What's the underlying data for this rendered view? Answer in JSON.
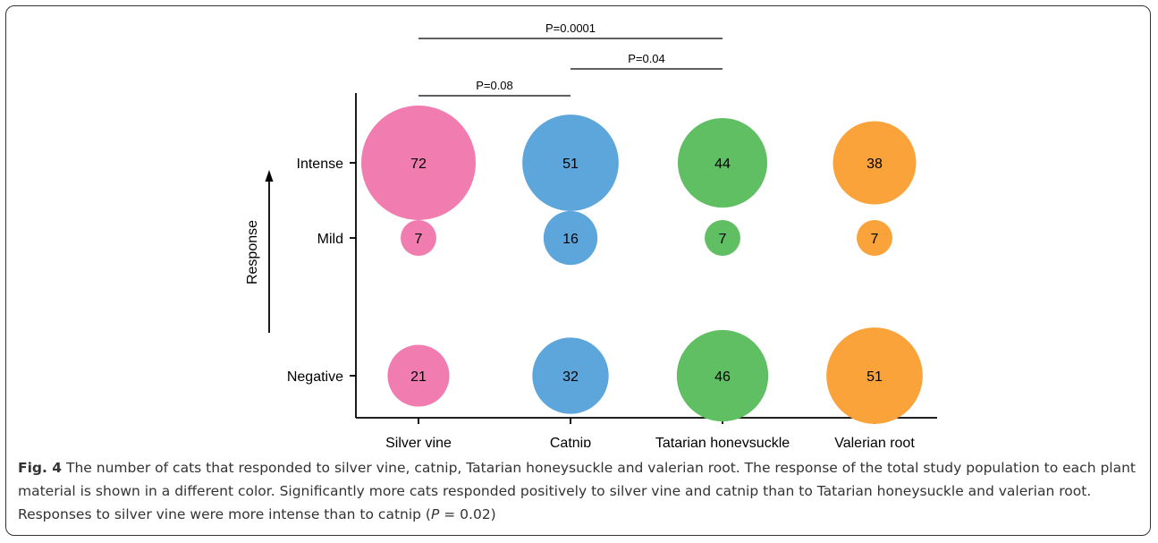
{
  "chart_data": {
    "type": "bubble",
    "categories": [
      "Silver vine",
      "Catnip",
      "Tatarian honeysuckle",
      "Valerian root"
    ],
    "response_levels": [
      "Intense",
      "Mild",
      "Negative"
    ],
    "ylabel": "Response",
    "xlabel": "",
    "series": [
      {
        "category": "Silver vine",
        "color": "#f07cb0",
        "values": {
          "Intense": 72,
          "Mild": 7,
          "Negative": 21
        }
      },
      {
        "category": "Catnip",
        "color": "#5da6dc",
        "values": {
          "Intense": 51,
          "Mild": 16,
          "Negative": 32
        }
      },
      {
        "category": "Tatarian honeysuckle",
        "color": "#60bf63",
        "values": {
          "Intense": 44,
          "Mild": 7,
          "Negative": 46
        }
      },
      {
        "category": "Valerian root",
        "color": "#f9a33a",
        "values": {
          "Intense": 38,
          "Mild": 7,
          "Negative": 51
        }
      }
    ],
    "significance": [
      {
        "from": "Silver vine",
        "to": "Tatarian honeysuckle",
        "label": "P=0.0001"
      },
      {
        "from": "Catnip",
        "to": "Tatarian honeysuckle",
        "label": "P=0.04"
      },
      {
        "from": "Silver vine",
        "to": "Catnip",
        "label": "P=0.08"
      }
    ]
  },
  "caption": {
    "label": "Fig. 4",
    "text": " The number of cats that responded to silver vine, catnip, Tatarian honeysuckle and valerian root. The response of the total study population to each plant material is shown in a different color. Significantly more cats responded positively to silver vine and catnip than to Tatarian honeysuckle and valerian root. Responses to silver vine were more intense than to catnip (",
    "p_symbol": "P",
    "p_value_text": " = 0.02)"
  }
}
